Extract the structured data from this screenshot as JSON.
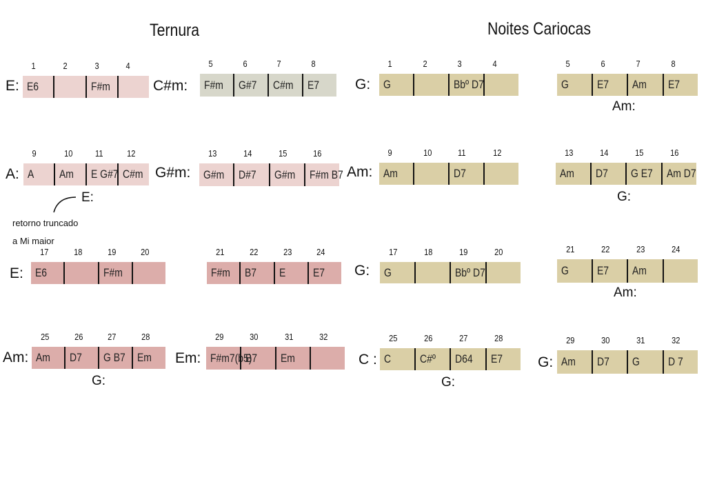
{
  "titles": [
    "Ternura",
    "Noites Cariocas"
  ],
  "blocks": [
    {
      "key": "E:",
      "numbers": [
        1,
        2,
        3,
        4
      ],
      "chords": [
        "E6",
        null,
        "F#m",
        null
      ]
    },
    {
      "key": "C#m:",
      "numbers": [
        5,
        6,
        7,
        8
      ],
      "chords": [
        "F#m",
        "G#7",
        "C#m",
        "E7"
      ]
    },
    {
      "key": "A:",
      "numbers": [
        9,
        10,
        11,
        12
      ],
      "chords": [
        "A",
        "Am",
        "E  G#7",
        "C#m"
      ],
      "below": "E:"
    },
    {
      "key": "G#m:",
      "numbers": [
        13,
        14,
        15,
        16
      ],
      "chords": [
        "G#m",
        "D#7",
        "G#m",
        "F#m  B7"
      ]
    },
    {
      "key": "E:",
      "numbers": [
        17,
        18,
        19,
        20
      ],
      "chords": [
        "E6",
        null,
        "F#m",
        null
      ]
    },
    {
      "numbers": [
        21,
        22,
        23,
        24
      ],
      "chords": [
        "F#m",
        "B7",
        "E",
        "E7"
      ]
    },
    {
      "key": "Am:",
      "numbers": [
        25,
        26,
        27,
        28
      ],
      "chords": [
        "Am",
        "D7",
        "G  B7",
        "Em"
      ],
      "below": "G:"
    },
    {
      "key": "Em:",
      "numbers": [
        29,
        30,
        31,
        32
      ],
      "chords": [
        "F#m7(b5)",
        "B7",
        "Em",
        null
      ]
    },
    {
      "key": "G:",
      "numbers": [
        1,
        2,
        3,
        4
      ],
      "chords": [
        "G",
        null,
        "Bbº D7",
        null
      ]
    },
    {
      "numbers": [
        5,
        6,
        7,
        8
      ],
      "chords": [
        "G",
        "E7",
        "Am",
        "E7"
      ],
      "below": "Am:"
    },
    {
      "key": "Am:",
      "numbers": [
        9,
        10,
        11,
        12
      ],
      "chords": [
        "Am",
        null,
        "D7",
        null
      ]
    },
    {
      "numbers": [
        13,
        14,
        15,
        16
      ],
      "chords": [
        "Am",
        "D7",
        "G  E7",
        "Am D7"
      ],
      "below": "G:"
    },
    {
      "key": "G:",
      "numbers": [
        17,
        18,
        19,
        20
      ],
      "chords": [
        "G",
        null,
        "Bbº D7",
        null
      ]
    },
    {
      "numbers": [
        21,
        22,
        23,
        24
      ],
      "chords": [
        "G",
        "E7",
        "Am",
        null
      ],
      "below": "Am:"
    },
    {
      "key": "C :",
      "numbers": [
        25,
        26,
        27,
        28
      ],
      "chords": [
        "C",
        "C#º",
        "D64",
        "E7"
      ],
      "below": "G:"
    },
    {
      "key": "G:",
      "numbers": [
        29,
        30,
        31,
        32
      ],
      "chords": [
        "Am",
        "D7",
        "G",
        "D 7"
      ]
    }
  ],
  "note": [
    "retorno truncado",
    "a Mi maior"
  ]
}
